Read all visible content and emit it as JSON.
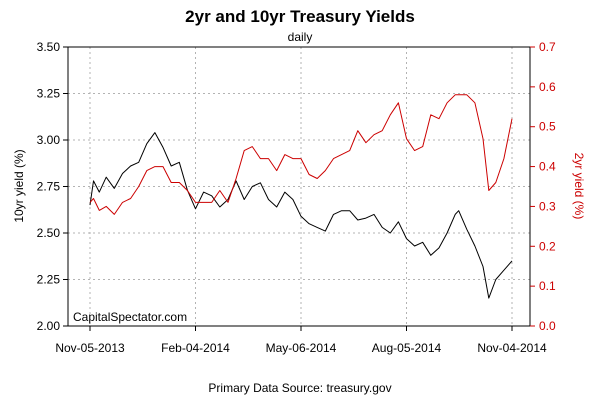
{
  "chart_data": {
    "type": "line",
    "title": "2yr and 10yr Treasury Yields",
    "subtitle": "daily",
    "watermark": "CapitalSpectator.com",
    "source": "Primary Data Source: treasury.gov",
    "xlabel": "",
    "ylabel_left": "10yr yield (%)",
    "ylabel_right": "2yr yield (%)",
    "ylim_left": [
      2.0,
      3.5
    ],
    "ylim_right": [
      0.0,
      0.7
    ],
    "yticks_left": [
      "2.00",
      "2.25",
      "2.50",
      "2.75",
      "3.00",
      "3.25",
      "3.50"
    ],
    "yticks_right": [
      "0.0",
      "0.1",
      "0.2",
      "0.3",
      "0.4",
      "0.5",
      "0.6",
      "0.7"
    ],
    "xlim": [
      "2013-11-05",
      "2014-11-04"
    ],
    "xticks": [
      "Nov-05-2013",
      "Feb-04-2014",
      "May-06-2014",
      "Aug-05-2014",
      "Nov-04-2014"
    ],
    "grid": true,
    "colors": {
      "left": "#000000",
      "right": "#cc0000"
    },
    "series": [
      {
        "name": "10yr",
        "axis": "left",
        "x": [
          "2013-11-05",
          "2013-11-08",
          "2013-11-13",
          "2013-11-19",
          "2013-11-26",
          "2013-12-03",
          "2013-12-10",
          "2013-12-17",
          "2013-12-24",
          "2013-12-31",
          "2014-01-07",
          "2014-01-14",
          "2014-01-21",
          "2014-01-28",
          "2014-02-04",
          "2014-02-11",
          "2014-02-18",
          "2014-02-25",
          "2014-03-04",
          "2014-03-11",
          "2014-03-18",
          "2014-03-25",
          "2014-04-01",
          "2014-04-08",
          "2014-04-15",
          "2014-04-22",
          "2014-04-29",
          "2014-05-06",
          "2014-05-13",
          "2014-05-20",
          "2014-05-27",
          "2014-06-03",
          "2014-06-10",
          "2014-06-17",
          "2014-06-24",
          "2014-07-01",
          "2014-07-08",
          "2014-07-15",
          "2014-07-22",
          "2014-07-29",
          "2014-08-05",
          "2014-08-12",
          "2014-08-19",
          "2014-08-26",
          "2014-09-02",
          "2014-09-09",
          "2014-09-16",
          "2014-09-19",
          "2014-09-26",
          "2014-10-03",
          "2014-10-10",
          "2014-10-15",
          "2014-10-21",
          "2014-10-28",
          "2014-11-04"
        ],
        "values": [
          2.65,
          2.78,
          2.72,
          2.8,
          2.74,
          2.82,
          2.86,
          2.88,
          2.98,
          3.04,
          2.96,
          2.86,
          2.88,
          2.73,
          2.63,
          2.72,
          2.7,
          2.64,
          2.68,
          2.78,
          2.68,
          2.75,
          2.77,
          2.68,
          2.64,
          2.72,
          2.68,
          2.59,
          2.55,
          2.53,
          2.51,
          2.6,
          2.62,
          2.62,
          2.57,
          2.58,
          2.6,
          2.53,
          2.5,
          2.56,
          2.47,
          2.43,
          2.45,
          2.38,
          2.42,
          2.5,
          2.6,
          2.62,
          2.52,
          2.43,
          2.32,
          2.15,
          2.25,
          2.3,
          2.35
        ]
      },
      {
        "name": "2yr",
        "axis": "right",
        "x": [
          "2013-11-05",
          "2013-11-08",
          "2013-11-13",
          "2013-11-19",
          "2013-11-26",
          "2013-12-03",
          "2013-12-10",
          "2013-12-17",
          "2013-12-24",
          "2013-12-31",
          "2014-01-07",
          "2014-01-14",
          "2014-01-21",
          "2014-01-28",
          "2014-02-04",
          "2014-02-11",
          "2014-02-18",
          "2014-02-25",
          "2014-03-04",
          "2014-03-11",
          "2014-03-18",
          "2014-03-25",
          "2014-04-01",
          "2014-04-08",
          "2014-04-15",
          "2014-04-22",
          "2014-04-29",
          "2014-05-06",
          "2014-05-13",
          "2014-05-20",
          "2014-05-27",
          "2014-06-03",
          "2014-06-10",
          "2014-06-17",
          "2014-06-24",
          "2014-07-01",
          "2014-07-08",
          "2014-07-15",
          "2014-07-22",
          "2014-07-29",
          "2014-08-05",
          "2014-08-12",
          "2014-08-19",
          "2014-08-26",
          "2014-09-02",
          "2014-09-09",
          "2014-09-16",
          "2014-09-19",
          "2014-09-26",
          "2014-10-03",
          "2014-10-10",
          "2014-10-15",
          "2014-10-21",
          "2014-10-28",
          "2014-11-04"
        ],
        "values": [
          0.31,
          0.32,
          0.29,
          0.3,
          0.28,
          0.31,
          0.32,
          0.35,
          0.39,
          0.4,
          0.4,
          0.36,
          0.36,
          0.34,
          0.31,
          0.31,
          0.31,
          0.34,
          0.31,
          0.37,
          0.44,
          0.45,
          0.42,
          0.42,
          0.39,
          0.43,
          0.42,
          0.42,
          0.38,
          0.37,
          0.39,
          0.42,
          0.43,
          0.44,
          0.49,
          0.46,
          0.48,
          0.49,
          0.53,
          0.56,
          0.47,
          0.44,
          0.45,
          0.53,
          0.52,
          0.56,
          0.58,
          0.58,
          0.58,
          0.56,
          0.47,
          0.34,
          0.36,
          0.42,
          0.52
        ]
      }
    ]
  }
}
